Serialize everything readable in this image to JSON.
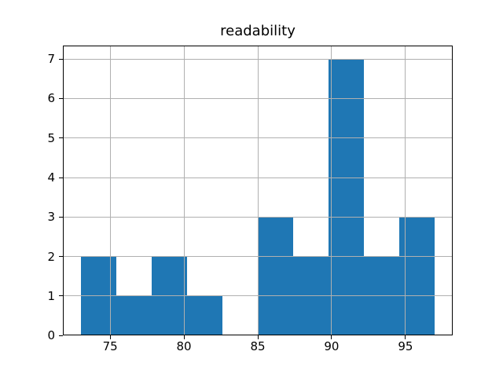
{
  "chart_data": {
    "type": "bar",
    "chart_kind": "histogram",
    "title": "readability",
    "xlabel": "",
    "ylabel": "",
    "bin_edges": [
      73.0,
      75.4,
      77.8,
      80.2,
      82.6,
      85.0,
      87.4,
      89.8,
      92.2,
      94.6,
      97.0
    ],
    "counts": [
      2,
      1,
      2,
      1,
      0,
      3,
      2,
      7,
      2,
      3
    ],
    "total_samples": 23,
    "xtick_labels": [
      "75",
      "80",
      "85",
      "90",
      "95"
    ],
    "xtick_values": [
      75,
      80,
      85,
      90,
      95
    ],
    "ytick_labels": [
      "0",
      "1",
      "2",
      "3",
      "4",
      "5",
      "6",
      "7"
    ],
    "ytick_values": [
      0,
      1,
      2,
      3,
      4,
      5,
      6,
      7
    ],
    "xlim": [
      71.8,
      98.2
    ],
    "ylim": [
      0,
      7.35
    ],
    "grid": true,
    "grid_above_data": true,
    "legend": null,
    "colors": {
      "bar": "#1f77b4",
      "grid": "#b0b0b0",
      "spine": "#000000",
      "text": "#000000",
      "background": "#ffffff"
    }
  }
}
